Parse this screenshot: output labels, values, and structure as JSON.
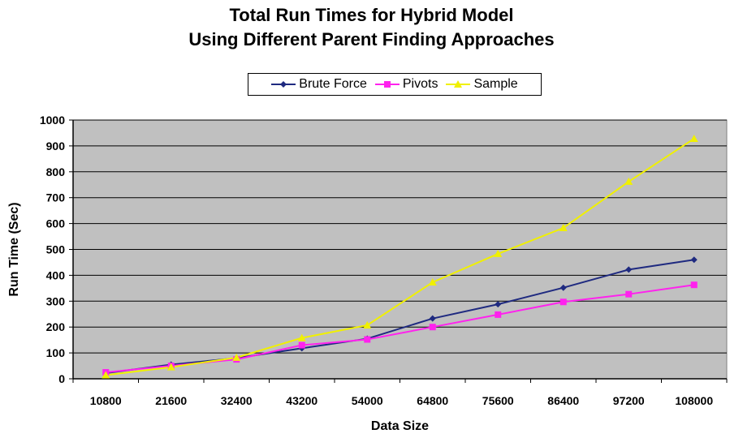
{
  "chart_data": {
    "type": "line",
    "title": [
      "Total Run Times for Hybrid Model",
      "Using Different Parent Finding Approaches"
    ],
    "xlabel": "Data Size",
    "ylabel": "Run Time (Sec)",
    "categories": [
      "10800",
      "21600",
      "32400",
      "43200",
      "54000",
      "64800",
      "75600",
      "86400",
      "97200",
      "108000"
    ],
    "ylim": [
      0,
      1000
    ],
    "yticks": [
      0,
      100,
      200,
      300,
      400,
      500,
      600,
      700,
      800,
      900,
      1000
    ],
    "grid": true,
    "legend_position": "top-center",
    "series": [
      {
        "name": "Brute Force",
        "color": "#1f2a80",
        "marker": "diamond",
        "values": [
          22,
          55,
          80,
          118,
          155,
          233,
          288,
          352,
          422,
          460
        ]
      },
      {
        "name": "Pivots",
        "color": "#ff22ee",
        "marker": "square",
        "values": [
          25,
          50,
          75,
          130,
          152,
          200,
          248,
          297,
          327,
          363
        ]
      },
      {
        "name": "Sample",
        "color": "#f0f000",
        "marker": "triangle",
        "values": [
          14,
          45,
          82,
          158,
          207,
          373,
          483,
          583,
          762,
          928
        ]
      }
    ]
  }
}
